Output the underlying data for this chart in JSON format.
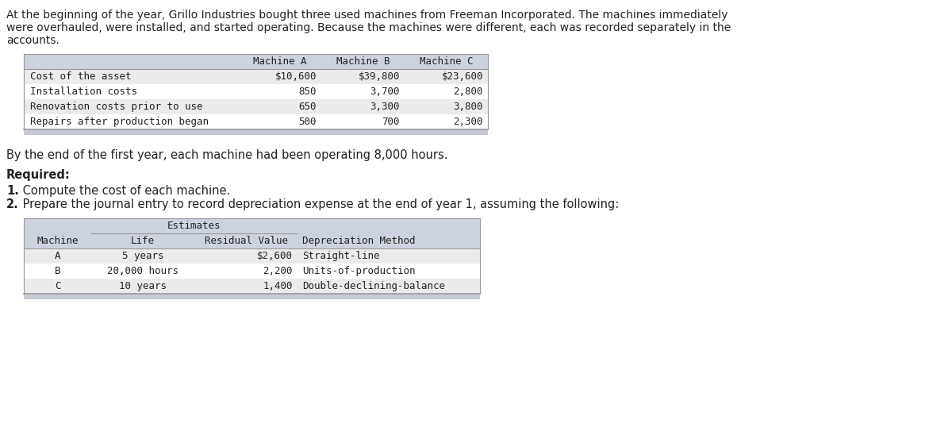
{
  "intro_text": "At the beginning of the year, Grillo Industries bought three used machines from Freeman Incorporated. The machines immediately\nwere overhauled, were installed, and started operating. Because the machines were different, each was recorded separately in the\naccounts.",
  "table1": {
    "headers": [
      "",
      "Machine A",
      "Machine B",
      "Machine C"
    ],
    "rows": [
      [
        "Cost of the asset",
        "$10,600",
        "$39,800",
        "$23,600"
      ],
      [
        "Installation costs",
        "850",
        "3,700",
        "2,800"
      ],
      [
        "Renovation costs prior to use",
        "650",
        "3,300",
        "3,800"
      ],
      [
        "Repairs after production began",
        "500",
        "700",
        "2,300"
      ]
    ],
    "header_bg": "#cdd3de",
    "alt_row_bg": "#ebebeb",
    "row_bg": "#ffffff",
    "border_color": "#999999",
    "shade_bar_color": "#c5cad4"
  },
  "middle_text": "By the end of the first year, each machine had been operating 8,000 hours.",
  "required_text": "Required:",
  "numbered_items": [
    [
      "1.",
      " Compute the cost of each machine."
    ],
    [
      "2.",
      " Prepare the journal entry to record depreciation expense at the end of year 1, assuming the following:"
    ]
  ],
  "table2": {
    "group_header": "Estimates",
    "headers": [
      "Machine",
      "Life",
      "Residual Value",
      "Depreciation Method"
    ],
    "rows": [
      [
        "A",
        "5 years",
        "$2,600",
        "Straight-line"
      ],
      [
        "B",
        "20,000 hours",
        "2,200",
        "Units-of-production"
      ],
      [
        "C",
        "10 years",
        "1,400",
        "Double-declining-balance"
      ]
    ],
    "header_bg": "#cdd3de",
    "alt_row_bg": "#ebebeb",
    "row_bg": "#ffffff",
    "border_color": "#999999",
    "shade_bar_color": "#c5cad4"
  },
  "bg_color": "#ffffff",
  "text_color": "#222222",
  "font_size": 9.5,
  "mono_font": "DejaVu Sans Mono"
}
